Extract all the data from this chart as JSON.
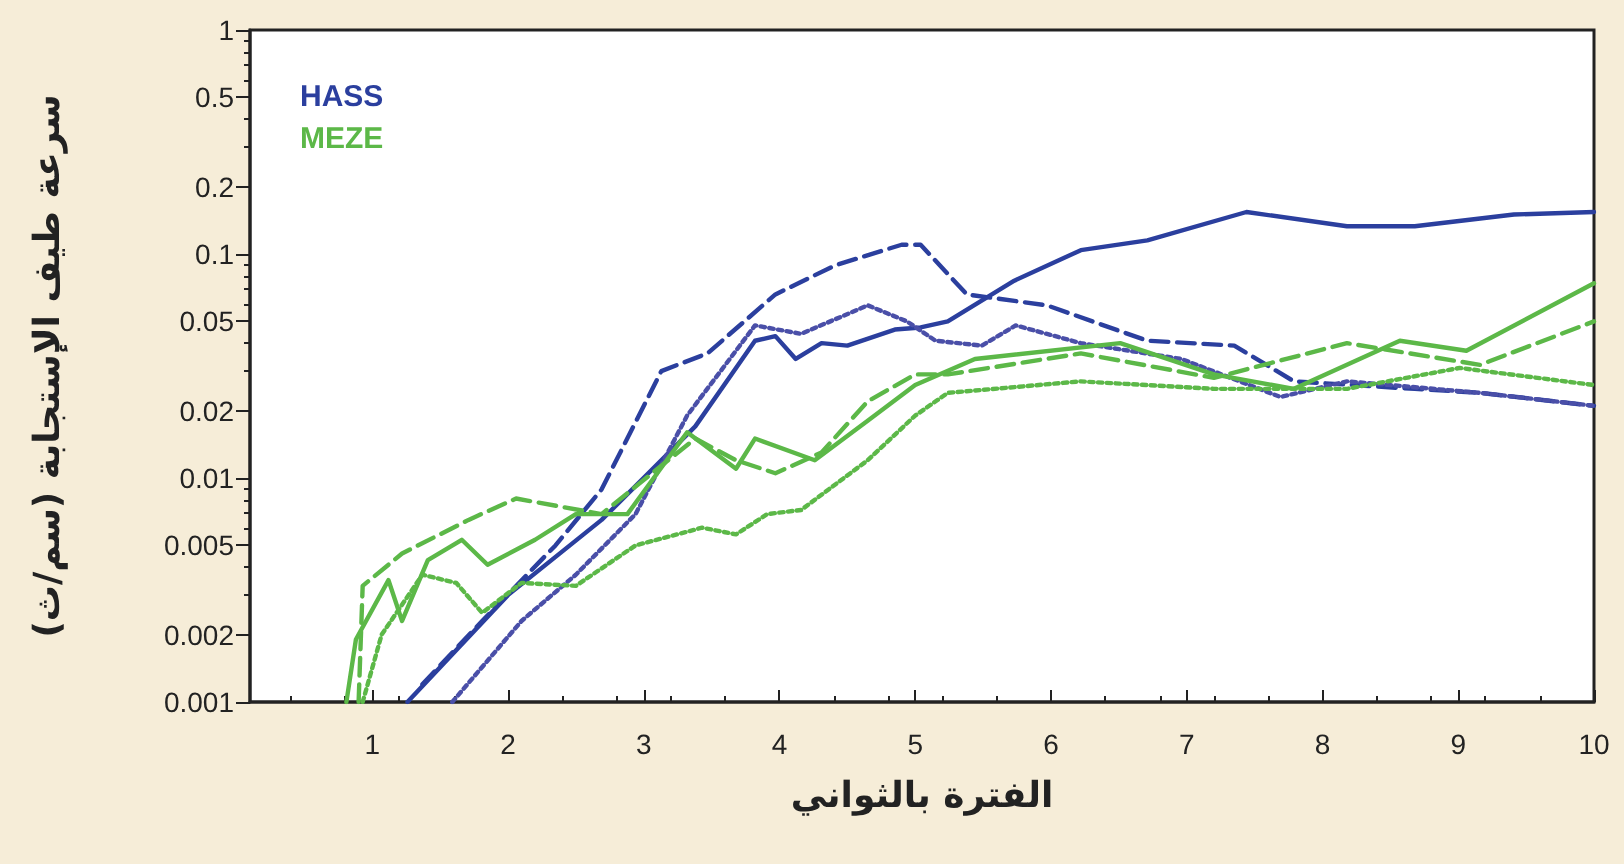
{
  "chart_data": {
    "type": "line",
    "xlabel": "الفترة بالثواني",
    "ylabel": "سرعة طيف الإستجابة (سم/ث)",
    "log": "y",
    "xlim": [
      0.1,
      10
    ],
    "xticks": [
      1,
      2,
      3,
      4,
      5,
      6,
      7,
      8,
      9,
      10
    ],
    "ylim": [
      0.001,
      1
    ],
    "yticks": [
      0.001,
      0.002,
      0.005,
      0.01,
      0.02,
      0.05,
      0.1,
      0.2,
      0.5,
      1
    ],
    "grid": false,
    "legend": "top left",
    "marker": "none",
    "series": [
      {
        "name": "HASS",
        "color": "#2b3f9e",
        "line_style": "solid",
        "x": [
          1.26,
          2.0,
          2.69,
          3.38,
          3.82,
          3.97,
          4.12,
          4.31,
          4.5,
          4.85,
          5.04,
          5.24,
          5.73,
          6.22,
          6.71,
          7.44,
          8.18,
          8.68,
          9.41,
          10
        ],
        "values": [
          0.001,
          0.003,
          0.0065,
          0.017,
          0.041,
          0.043,
          0.034,
          0.04,
          0.039,
          0.046,
          0.047,
          0.05,
          0.076,
          0.104,
          0.115,
          0.154,
          0.133,
          0.133,
          0.15,
          0.154
        ]
      },
      {
        "color": "#2b3f9e",
        "line_style": "dashed",
        "x": [
          1.37,
          1.81,
          2.35,
          2.69,
          3.13,
          3.47,
          3.97,
          4.41,
          4.9,
          5.04,
          5.38,
          5.97,
          6.71,
          7.35,
          7.79,
          8.68,
          9.16,
          10
        ],
        "values": [
          0.0012,
          0.0023,
          0.005,
          0.0089,
          0.03,
          0.036,
          0.066,
          0.089,
          0.11,
          0.11,
          0.066,
          0.059,
          0.041,
          0.039,
          0.027,
          0.025,
          0.024,
          0.021
        ]
      },
      {
        "color": "#4a4fa8",
        "line_style": "dotted",
        "x": [
          1.59,
          2.1,
          2.5,
          2.94,
          3.32,
          3.82,
          4.16,
          4.65,
          4.94,
          5.15,
          5.49,
          5.74,
          6.22,
          6.96,
          7.69,
          8.18,
          9.16,
          10
        ],
        "values": [
          0.001,
          0.0023,
          0.0037,
          0.0069,
          0.019,
          0.048,
          0.044,
          0.059,
          0.05,
          0.041,
          0.039,
          0.048,
          0.04,
          0.034,
          0.023,
          0.027,
          0.024,
          0.021
        ]
      },
      {
        "name": "MEZE",
        "color": "#5cb848",
        "line_style": "solid",
        "x": [
          0.81,
          0.88,
          1.12,
          1.22,
          1.41,
          1.66,
          1.85,
          2.2,
          2.5,
          2.88,
          3.32,
          3.68,
          3.82,
          4.26,
          4.65,
          5.0,
          5.44,
          6.51,
          7.2,
          7.79,
          8.57,
          9.06,
          10
        ],
        "values": [
          0.001,
          0.0019,
          0.0035,
          0.0023,
          0.0043,
          0.0053,
          0.0041,
          0.0053,
          0.0069,
          0.0069,
          0.016,
          0.011,
          0.015,
          0.012,
          0.018,
          0.026,
          0.034,
          0.04,
          0.029,
          0.025,
          0.041,
          0.037,
          0.074
        ]
      },
      {
        "color": "#5cb848",
        "line_style": "dashed",
        "x": [
          0.9,
          0.93,
          1.22,
          1.71,
          2.06,
          2.69,
          3.18,
          3.38,
          3.68,
          3.97,
          4.31,
          4.65,
          5.0,
          5.24,
          6.22,
          7.2,
          8.18,
          9.16,
          10
        ],
        "values": [
          0.001,
          0.0033,
          0.0046,
          0.0065,
          0.0081,
          0.0069,
          0.012,
          0.015,
          0.012,
          0.0105,
          0.013,
          0.022,
          0.029,
          0.029,
          0.036,
          0.028,
          0.04,
          0.032,
          0.05
        ]
      },
      {
        "color": "#5cb848",
        "line_style": "dotted",
        "x": [
          0.93,
          1.07,
          1.37,
          1.62,
          1.81,
          2.1,
          2.5,
          2.94,
          3.43,
          3.68,
          3.91,
          4.16,
          4.65,
          5.0,
          5.24,
          6.22,
          7.2,
          8.18,
          9.01,
          10
        ],
        "values": [
          0.001,
          0.002,
          0.0037,
          0.0034,
          0.0025,
          0.0034,
          0.0033,
          0.005,
          0.006,
          0.0056,
          0.0069,
          0.0072,
          0.012,
          0.019,
          0.024,
          0.027,
          0.025,
          0.025,
          0.031,
          0.026
        ]
      }
    ]
  }
}
